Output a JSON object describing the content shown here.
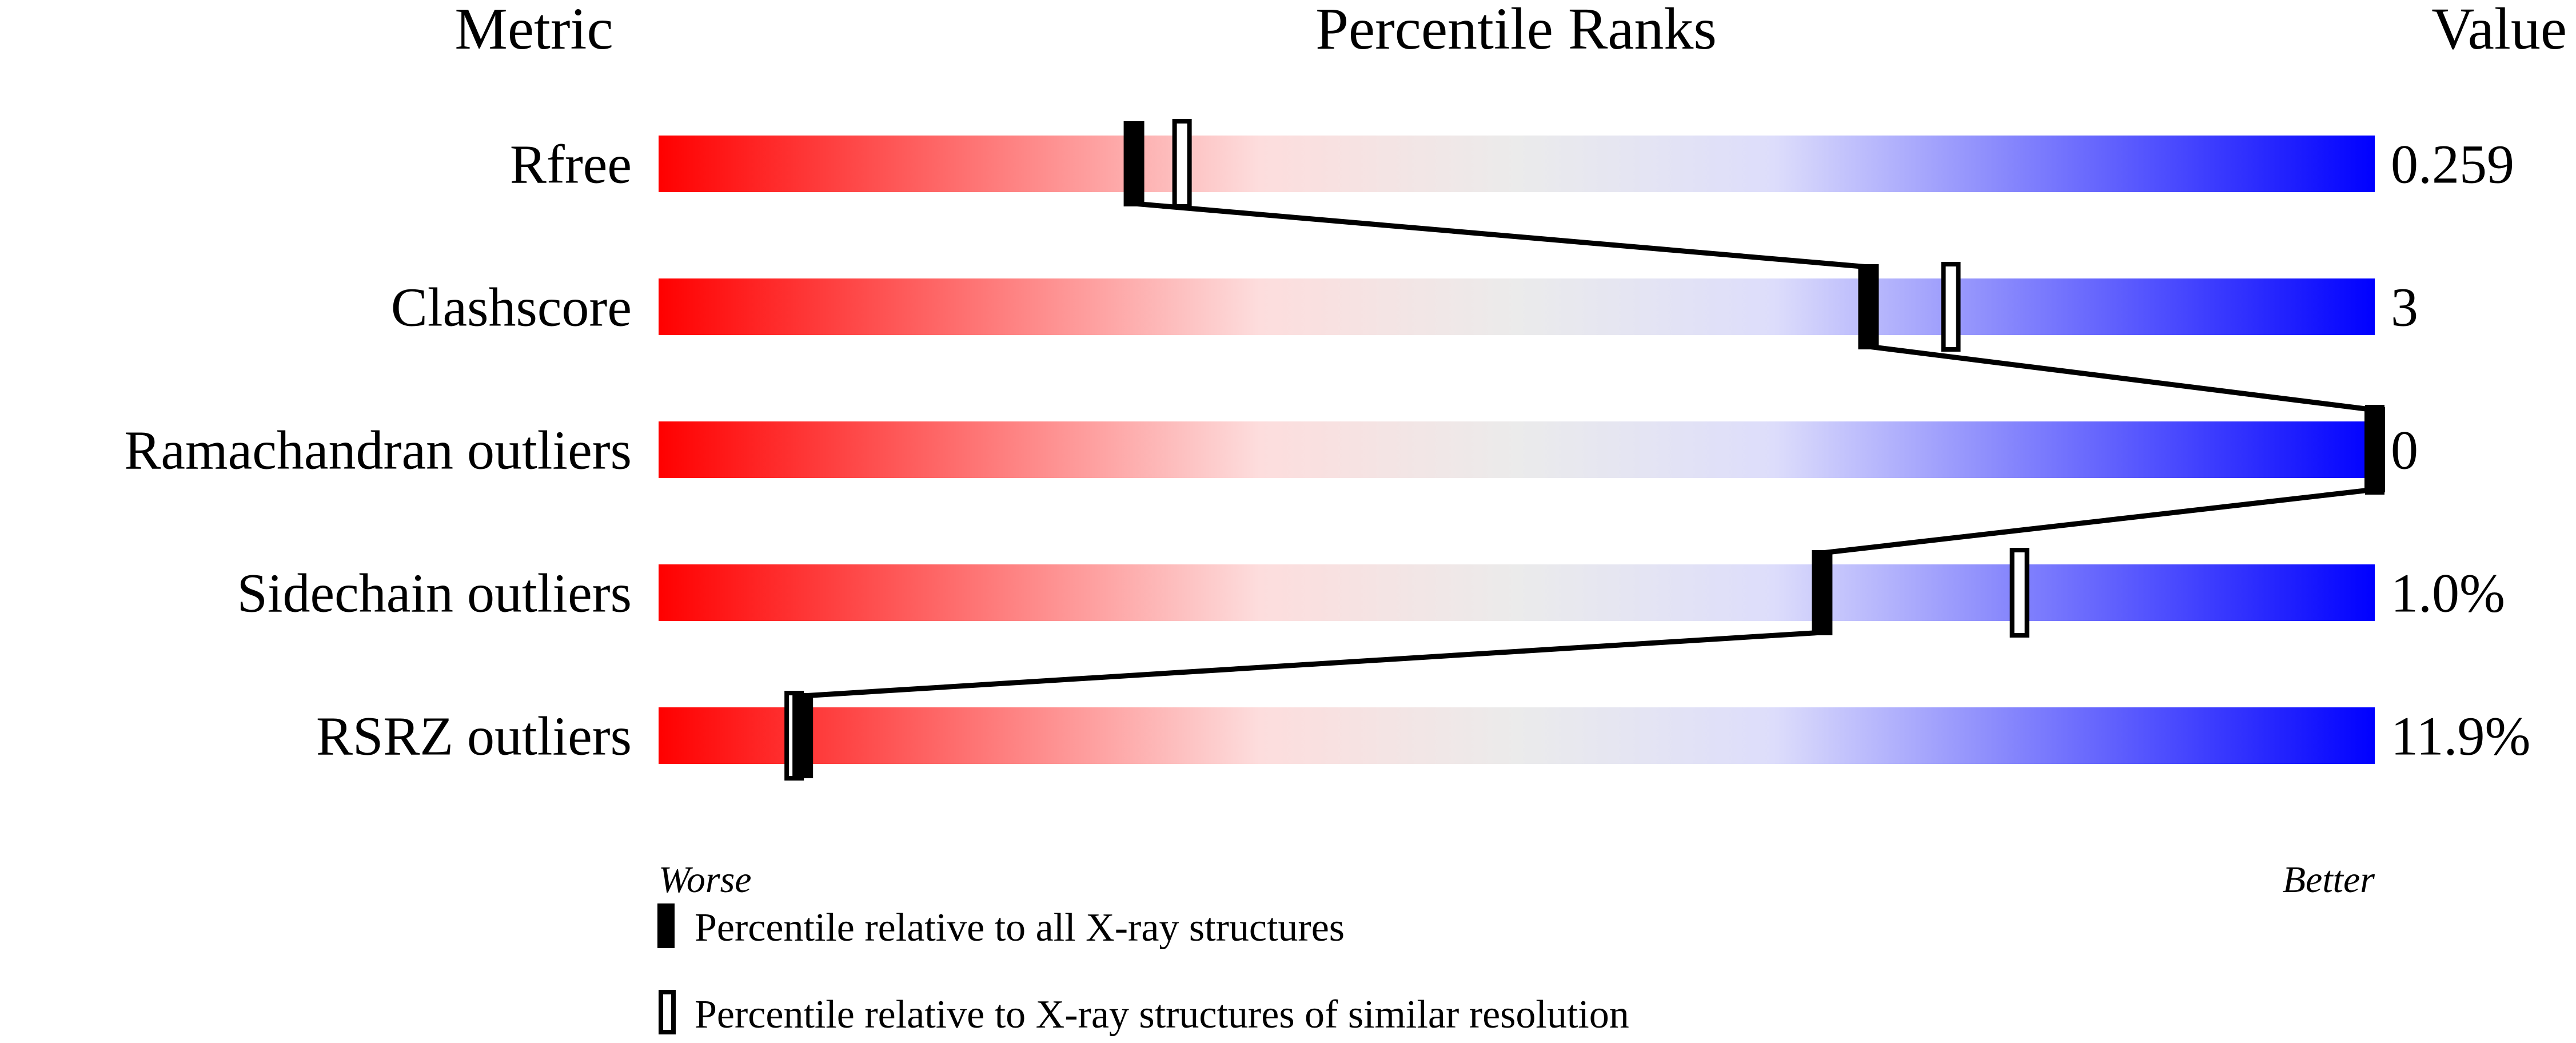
{
  "chart_data": {
    "type": "percentile-bar",
    "headers": {
      "metric": "Metric",
      "ranks": "Percentile Ranks",
      "value": "Value"
    },
    "xlim": [
      0,
      100
    ],
    "axis_labels": {
      "left": "Worse",
      "right": "Better"
    },
    "gradient_colors": [
      "#ff0000",
      "#fddddd",
      "#ebebeb",
      "#ddddfb",
      "#0000ff"
    ],
    "rows": [
      {
        "metric": "Rfree",
        "value": "0.259",
        "percentile_all": 27.7,
        "percentile_similar": 30.5
      },
      {
        "metric": "Clashscore",
        "value": "3",
        "percentile_all": 70.5,
        "percentile_similar": 75.3
      },
      {
        "metric": "Ramachandran outliers",
        "value": "0",
        "percentile_all": 100,
        "percentile_similar": 100
      },
      {
        "metric": "Sidechain outliers",
        "value": "1.0%",
        "percentile_all": 67.8,
        "percentile_similar": 79.3
      },
      {
        "metric": "RSRZ outliers",
        "value": "11.9%",
        "percentile_all": 8.4,
        "percentile_similar": 7.9
      }
    ],
    "legend": [
      {
        "marker": "filled",
        "label": "Percentile relative to all X-ray structures"
      },
      {
        "marker": "open",
        "label": "Percentile relative to X-ray structures of similar resolution"
      }
    ]
  }
}
